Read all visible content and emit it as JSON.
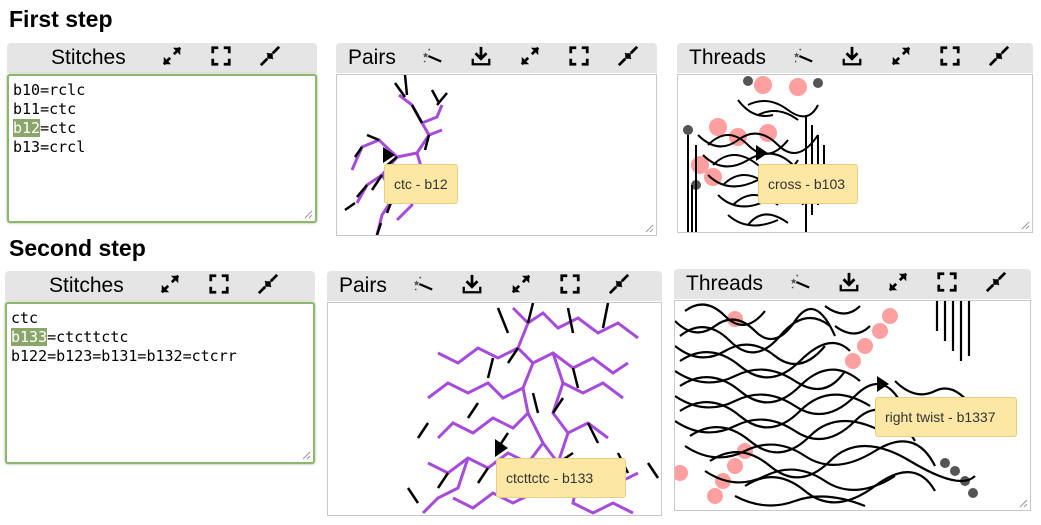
{
  "first_step": {
    "title": "First step",
    "stitches": {
      "label": "Stitches",
      "lines": [
        {
          "pre": "",
          "hl": "",
          "post": "b10=rclc"
        },
        {
          "pre": "",
          "hl": "",
          "post": "b11=ctc"
        },
        {
          "pre": "",
          "hl": "b12",
          "post": "=ctc"
        },
        {
          "pre": "",
          "hl": "",
          "post": "b13=crcl"
        }
      ]
    },
    "pairs": {
      "label": "Pairs",
      "tooltip": "ctc - b12"
    },
    "threads": {
      "label": "Threads",
      "tooltip": "cross - b103"
    }
  },
  "second_step": {
    "title": "Second step",
    "stitches": {
      "label": "Stitches",
      "lines": [
        {
          "pre": "",
          "hl": "",
          "post": "ctc"
        },
        {
          "pre": "",
          "hl": "b133",
          "post": "=ctcttctc"
        },
        {
          "pre": "",
          "hl": "",
          "post": "b122=b123=b131=b132=ctcrr"
        }
      ]
    },
    "pairs": {
      "label": "Pairs",
      "tooltip": "ctcttctc - b133"
    },
    "threads": {
      "label": "Threads",
      "tooltip": "right twist - b1337"
    }
  },
  "icons": {
    "wand": "magic-wand-icon",
    "download": "download-icon",
    "expand": "expand-arrows-icon",
    "fullscreen": "fullscreen-icon",
    "shrink": "shrink-arrows-icon"
  },
  "colors": {
    "pair_line": "#a64bdc",
    "thread_highlight": "#ff6b6b",
    "field_border": "#8fb573",
    "tooltip_bg": "#fce7a4"
  }
}
